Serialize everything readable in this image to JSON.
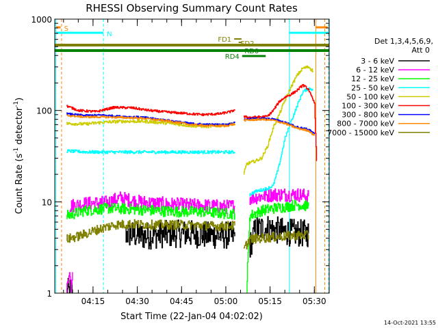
{
  "chart_data": {
    "type": "line",
    "title": "RHESSI Observing Summary Count Rates",
    "xlabel": "Start Time (22-Jan-04 04:02:02)",
    "ylabel_main": "Count Rate (s",
    "ylabel_sup1": "-1",
    "ylabel_mid": " detector",
    "ylabel_sup2": "-1",
    "ylabel_end": ")",
    "yscale": "log",
    "ylim": [
      1,
      1000
    ],
    "xlim_minutes": [
      0,
      93
    ],
    "y_ticks": [
      {
        "value": 1,
        "label": "1"
      },
      {
        "value": 10,
        "label": "10"
      },
      {
        "value": 100,
        "label": "100"
      },
      {
        "value": 1000,
        "label": "1000"
      }
    ],
    "x_ticks": [
      {
        "minute": 12.97,
        "label": "04:15"
      },
      {
        "minute": 27.97,
        "label": "04:30"
      },
      {
        "minute": 42.97,
        "label": "04:45"
      },
      {
        "minute": 57.97,
        "label": "05:00"
      },
      {
        "minute": 72.97,
        "label": "05:15"
      },
      {
        "minute": 87.97,
        "label": "05:30"
      }
    ],
    "legend_header": [
      "Det 1,3,4,5,6,9,",
      "Att 0"
    ],
    "legend_placement": "right",
    "series": [
      {
        "name": "3 - 6 keV",
        "color": "#000000",
        "segments": [
          [
            [
              4,
              1
            ],
            [
              6,
              1.1
            ]
          ],
          [
            [
              24,
              4.5
            ],
            [
              30,
              4.2
            ],
            [
              36,
              4.4
            ],
            [
              45,
              4.5
            ],
            [
              52,
              4.3
            ],
            [
              58,
              4.3
            ],
            [
              61,
              4.2
            ]
          ],
          [
            [
              66,
              3.2
            ],
            [
              68,
              5
            ],
            [
              72,
              5.2
            ],
            [
              76,
              4.8
            ],
            [
              80,
              4.6
            ],
            [
              84,
              4.5
            ],
            [
              86,
              4.5
            ]
          ]
        ],
        "noise": 0.35
      },
      {
        "name": "6 - 12 keV",
        "color": "#ff00ff",
        "segments": [
          [
            [
              4,
              1
            ],
            [
              4.8,
              1.8
            ],
            [
              5.5,
              1.2
            ],
            [
              6,
              1.7
            ]
          ],
          [
            [
              5,
              9
            ],
            [
              10,
              9.5
            ],
            [
              18,
              9.8
            ],
            [
              22,
              11
            ],
            [
              28,
              10
            ],
            [
              36,
              9.5
            ],
            [
              44,
              9.2
            ],
            [
              52,
              9
            ],
            [
              58,
              8.8
            ],
            [
              61,
              9
            ]
          ],
          [
            [
              66,
              11
            ],
            [
              70,
              11.5
            ],
            [
              74,
              12
            ],
            [
              78,
              12
            ],
            [
              82,
              12
            ],
            [
              86,
              11.5
            ]
          ]
        ],
        "noise": 0.18
      },
      {
        "name": "12 - 25 keV",
        "color": "#00ff00",
        "segments": [
          [
            [
              4,
              7
            ],
            [
              10,
              8
            ],
            [
              18,
              8.5
            ],
            [
              26,
              8.3
            ],
            [
              34,
              8
            ],
            [
              42,
              7.8
            ],
            [
              50,
              7.8
            ],
            [
              56,
              7.5
            ],
            [
              61,
              7.4
            ]
          ],
          [
            [
              65,
              1
            ],
            [
              66,
              7
            ],
            [
              70,
              8
            ],
            [
              74,
              8.5
            ],
            [
              78,
              8.8
            ],
            [
              82,
              9.3
            ],
            [
              86,
              9
            ]
          ]
        ],
        "noise": 0.14
      },
      {
        "name": "25 - 50 keV",
        "color": "#00ffff",
        "segments": [
          [
            [
              4,
              36
            ],
            [
              12,
              35
            ],
            [
              20,
              35
            ],
            [
              30,
              35
            ],
            [
              40,
              35
            ],
            [
              50,
              35
            ],
            [
              58,
              35
            ],
            [
              61,
              35
            ]
          ],
          [
            [
              66,
              12
            ],
            [
              68,
              13
            ],
            [
              72,
              14
            ],
            [
              74,
              15
            ],
            [
              76,
              25
            ],
            [
              78,
              50
            ],
            [
              80,
              75
            ],
            [
              82,
              110
            ],
            [
              84,
              160
            ],
            [
              86,
              175
            ],
            [
              87.5,
              170
            ]
          ]
        ],
        "noise": 0.04
      },
      {
        "name": "50 - 100 keV",
        "color": "#cccc00",
        "segments": [
          [
            [
              4,
              72
            ],
            [
              10,
              71
            ],
            [
              16,
              74
            ],
            [
              22,
              76
            ],
            [
              30,
              76
            ],
            [
              38,
              73
            ],
            [
              46,
              68
            ],
            [
              52,
              67
            ],
            [
              58,
              69
            ],
            [
              61,
              72
            ]
          ],
          [
            [
              64,
              20
            ],
            [
              65,
              26
            ],
            [
              68,
              28
            ],
            [
              70,
              30
            ],
            [
              72,
              40
            ],
            [
              74,
              65
            ],
            [
              76,
              90
            ],
            [
              78,
              130
            ],
            [
              80,
              180
            ],
            [
              82,
              240
            ],
            [
              84,
              290
            ],
            [
              86,
              300
            ],
            [
              87.5,
              270
            ]
          ]
        ],
        "noise": 0.04
      },
      {
        "name": "100 - 300 keV",
        "color": "#ff0000",
        "segments": [
          [
            [
              4,
              112
            ],
            [
              8,
              100
            ],
            [
              14,
              97
            ],
            [
              20,
              108
            ],
            [
              26,
              107
            ],
            [
              32,
              100
            ],
            [
              38,
              96
            ],
            [
              44,
              93
            ],
            [
              50,
              90
            ],
            [
              56,
              92
            ],
            [
              60,
              98
            ],
            [
              61,
              103
            ]
          ],
          [
            [
              64,
              85
            ],
            [
              66,
              84
            ],
            [
              70,
              85
            ],
            [
              72,
              86
            ],
            [
              74,
              100
            ],
            [
              76,
              125
            ],
            [
              78,
              140
            ],
            [
              80,
              150
            ],
            [
              82,
              165
            ],
            [
              84,
              190
            ],
            [
              86,
              170
            ],
            [
              87,
              140
            ],
            [
              88,
              120
            ],
            [
              88.7,
              28
            ]
          ]
        ],
        "noise": 0.03
      },
      {
        "name": "300 - 800 keV",
        "color": "#0000ff",
        "segments": [
          [
            [
              4,
              92
            ],
            [
              10,
              88
            ],
            [
              16,
              89
            ],
            [
              22,
              86
            ],
            [
              30,
              84
            ],
            [
              38,
              78
            ],
            [
              46,
              72
            ],
            [
              52,
              70
            ],
            [
              58,
              70
            ],
            [
              61,
              73
            ]
          ],
          [
            [
              64,
              80
            ],
            [
              70,
              82
            ],
            [
              74,
              80
            ],
            [
              78,
              74
            ],
            [
              82,
              66
            ],
            [
              86,
              62
            ],
            [
              88,
              55
            ]
          ]
        ],
        "noise": 0.025
      },
      {
        "name": "800 - 7000 keV",
        "color": "#ff8800",
        "segments": [
          [
            [
              4,
              88
            ],
            [
              10,
              85
            ],
            [
              16,
              85
            ],
            [
              22,
              84
            ],
            [
              30,
              82
            ],
            [
              38,
              77
            ],
            [
              46,
              70
            ],
            [
              52,
              68
            ],
            [
              58,
              68
            ],
            [
              61,
              71
            ]
          ],
          [
            [
              64,
              78
            ],
            [
              70,
              80
            ],
            [
              74,
              78
            ],
            [
              78,
              72
            ],
            [
              82,
              64
            ],
            [
              86,
              60
            ],
            [
              88,
              53
            ]
          ]
        ],
        "noise": 0.025
      },
      {
        "name": "7000 - 15000 keV",
        "color": "#808000",
        "segments": [
          [
            [
              4,
              3.9
            ],
            [
              8,
              4.2
            ],
            [
              14,
              4.9
            ],
            [
              20,
              5.6
            ],
            [
              26,
              5.7
            ],
            [
              34,
              5.6
            ],
            [
              42,
              5.6
            ],
            [
              50,
              5.5
            ],
            [
              56,
              5.4
            ],
            [
              61,
              5.5
            ]
          ],
          [
            [
              64,
              3
            ],
            [
              66,
              3.9
            ],
            [
              70,
              4
            ],
            [
              74,
              4.1
            ],
            [
              78,
              4.2
            ],
            [
              82,
              4.3
            ],
            [
              86,
              4.3
            ]
          ]
        ],
        "noise": 0.12
      }
    ],
    "flag_bars": [
      {
        "label": "S",
        "color": "#ff8800",
        "x_start": 0.5,
        "x_end": 2.0,
        "row": 0,
        "label_pos": "right"
      },
      {
        "label": "N",
        "color": "#00ffff",
        "x_start": 0.5,
        "x_end": 16.5,
        "row": 1,
        "label_pos": "right"
      },
      {
        "label": "",
        "color": "#00ffff",
        "x_start": 79.5,
        "x_end": 93,
        "row": 1,
        "label_pos": "none"
      },
      {
        "label": "",
        "color": "#ff8800",
        "x_start": 88.5,
        "x_end": 92.5,
        "row": 0,
        "label_pos": "none"
      },
      {
        "label": "FD1",
        "color": "#808000",
        "x_start": 60.8,
        "x_end": 63.3,
        "row": 2,
        "label_pos": "left"
      },
      {
        "label": "FD2",
        "color": "#808000",
        "x_start": 62.3,
        "x_end": 63.3,
        "row": 3,
        "label_pos": "right_over"
      },
      {
        "label": "",
        "color": "#808000",
        "x_start": 0,
        "x_end": 93,
        "row": 4,
        "label_pos": "none"
      },
      {
        "label": "RD0",
        "color": "#008000",
        "x_start": 0,
        "x_end": 93,
        "row": 5,
        "label_pos": "inline"
      },
      {
        "label": "RD4",
        "color": "#008000",
        "x_start": 63.5,
        "x_end": 71.5,
        "row": 6,
        "label_pos": "left"
      }
    ],
    "vertical_lines": [
      {
        "minute": 2.3,
        "color": "#ff8800",
        "style": "dashed"
      },
      {
        "minute": 16.5,
        "color": "#00ffff",
        "style": "dashed"
      },
      {
        "minute": 79.5,
        "color": "#00ffff",
        "style": "solid"
      },
      {
        "minute": 88.5,
        "color": "#ff8800",
        "style": "solid"
      },
      {
        "minute": 91.5,
        "color": "#ff8800",
        "style": "dashed"
      },
      {
        "minute": 92.8,
        "color": "#00ffff",
        "style": "dashed"
      },
      {
        "minute": 0.4,
        "color": "#00ffff",
        "style": "solid"
      }
    ],
    "footer_date": "14-Oct-2021 13:55"
  }
}
